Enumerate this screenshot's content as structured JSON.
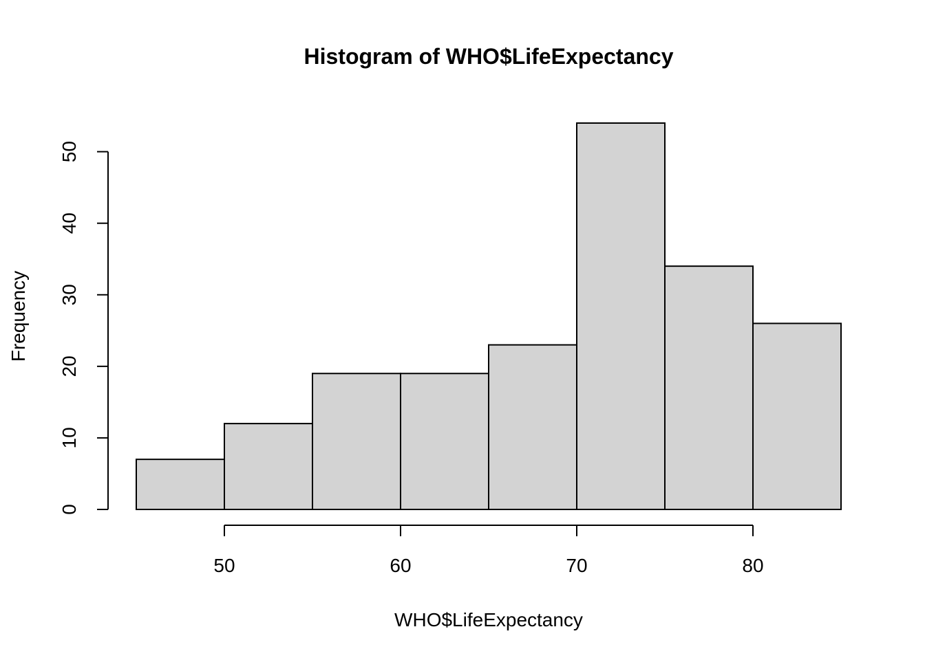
{
  "chart_data": {
    "type": "bar",
    "title": "Histogram of WHO$LifeExpectancy",
    "xlabel": "WHO$LifeExpectancy",
    "ylabel": "Frequency",
    "bins": [
      {
        "start": 45,
        "end": 50,
        "count": 7
      },
      {
        "start": 50,
        "end": 55,
        "count": 12
      },
      {
        "start": 55,
        "end": 60,
        "count": 19
      },
      {
        "start": 60,
        "end": 65,
        "count": 19
      },
      {
        "start": 65,
        "end": 70,
        "count": 23
      },
      {
        "start": 70,
        "end": 75,
        "count": 54
      },
      {
        "start": 75,
        "end": 80,
        "count": 34
      },
      {
        "start": 80,
        "end": 85,
        "count": 26
      }
    ],
    "x_ticks": [
      50,
      60,
      70,
      80
    ],
    "x_tick_labels": [
      "50",
      "60",
      "70",
      "80"
    ],
    "y_ticks": [
      0,
      10,
      20,
      30,
      40,
      50
    ],
    "y_tick_labels": [
      "0",
      "10",
      "20",
      "30",
      "40",
      "50"
    ],
    "xlim": [
      45,
      85
    ],
    "ylim": [
      0,
      54
    ],
    "grid": false,
    "colors": {
      "bar_fill": "#d3d3d3",
      "bar_stroke": "#000000"
    }
  }
}
